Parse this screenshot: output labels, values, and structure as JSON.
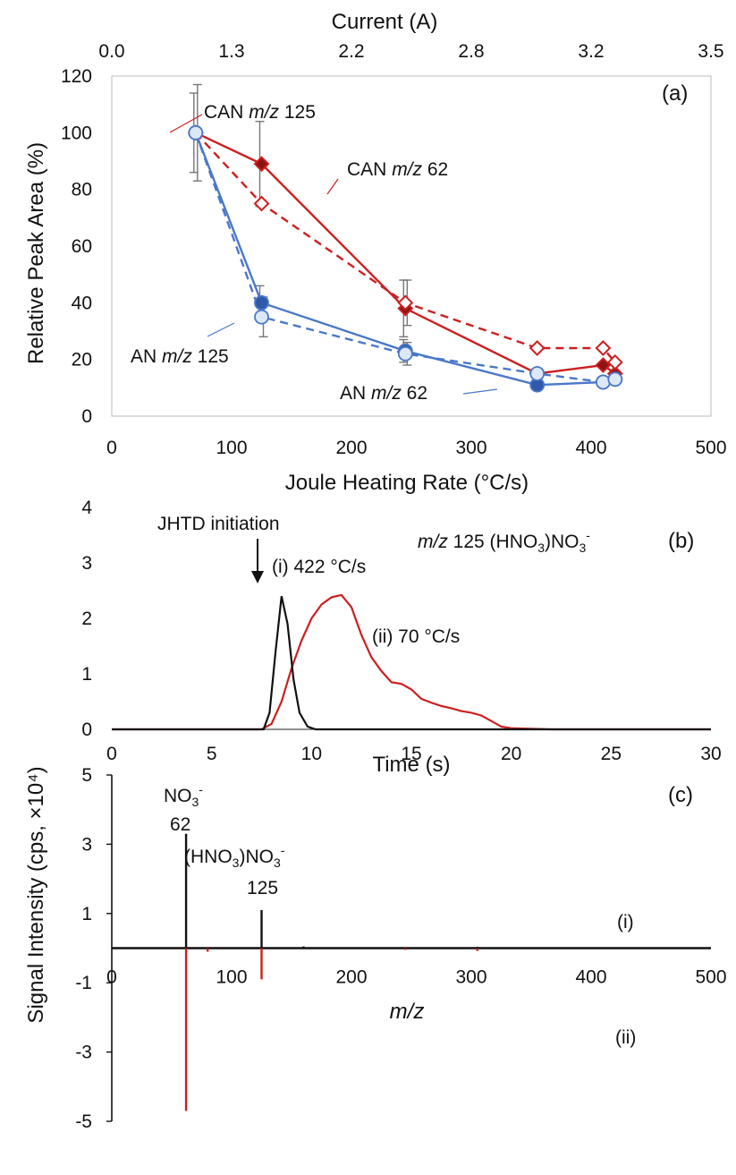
{
  "colors": {
    "can": "#cc1f1f",
    "can_fill_dark": "#8e1414",
    "an": "#4a78c8",
    "an_fill_dark": "#2f5aa8",
    "an_fill_light": "#dde8f6",
    "black": "#111111",
    "error_bar": "#777777"
  },
  "chart_data": [
    {
      "panel": "(a)",
      "type": "line",
      "xlabel": "Joule Heating Rate (°C/s)",
      "ylabel": "Relative Peak Area (%)",
      "top_axis_label": "Current (A)",
      "top_ticks": [
        "0.0",
        "1.3",
        "2.2",
        "2.8",
        "3.2",
        "3.5"
      ],
      "xlim": [
        0,
        500
      ],
      "ylim": [
        0,
        120
      ],
      "xticks": [
        "0",
        "100",
        "200",
        "300",
        "400",
        "500"
      ],
      "yticks": [
        "0",
        "20",
        "40",
        "60",
        "80",
        "100",
        "120"
      ],
      "series": [
        {
          "name": "CAN m/z 125",
          "style": "solid",
          "marker": "diamond-filled",
          "x": [
            70,
            125,
            245,
            355,
            410,
            420
          ],
          "y": [
            100,
            89,
            38,
            15,
            18,
            15
          ],
          "err": [
            0,
            15,
            10,
            0,
            0,
            0
          ]
        },
        {
          "name": "CAN m/z 62",
          "style": "dashed",
          "marker": "diamond-open",
          "x": [
            70,
            125,
            245,
            355,
            410,
            420
          ],
          "y": [
            100,
            75,
            40,
            24,
            24,
            19
          ],
          "err": [
            17,
            0,
            8,
            0,
            0,
            0
          ]
        },
        {
          "name": "AN m/z 125",
          "style": "solid",
          "marker": "circle-filled",
          "x": [
            70,
            125,
            245,
            355,
            410,
            420
          ],
          "y": [
            100,
            40,
            23,
            11,
            12,
            13
          ],
          "err": [
            14,
            6,
            4,
            0,
            0,
            0
          ]
        },
        {
          "name": "AN m/z 62",
          "style": "dashed",
          "marker": "circle-open",
          "x": [
            70,
            125,
            245,
            355,
            410,
            420
          ],
          "y": [
            100,
            35,
            22,
            15,
            12,
            13
          ],
          "err": [
            0,
            7,
            4,
            0,
            0,
            0
          ]
        }
      ],
      "labels": [
        {
          "prefix": "CAN ",
          "mz": "m/z",
          "suffix": " 125"
        },
        {
          "prefix": "CAN ",
          "mz": "m/z",
          "suffix": " 62"
        },
        {
          "prefix": "AN ",
          "mz": "m/z",
          "suffix": " 125"
        },
        {
          "prefix": "AN ",
          "mz": "m/z",
          "suffix": " 62"
        }
      ]
    },
    {
      "panel": "(b)",
      "type": "line",
      "xlabel": "Time (s)",
      "xlim": [
        0,
        30
      ],
      "ylim": [
        0,
        4
      ],
      "xticks": [
        "0",
        "5",
        "10",
        "15",
        "20",
        "25",
        "30"
      ],
      "yticks": [
        "0",
        "1",
        "2",
        "3",
        "4"
      ],
      "title_mz": "m/z",
      "title_rest": " 125 (HNO",
      "title_tail": ")NO",
      "annotation": "JHTD initiation",
      "series": [
        {
          "name": "(i) 422 °C/s",
          "x": [
            0,
            2,
            4,
            6,
            7.6,
            7.9,
            8.2,
            8.5,
            8.8,
            9.1,
            9.4,
            9.8,
            10.2,
            12,
            15,
            20,
            25,
            30
          ],
          "y": [
            0,
            0,
            0,
            0,
            0,
            0.3,
            1.4,
            2.4,
            1.9,
            0.9,
            0.3,
            0.05,
            0,
            0,
            0,
            0,
            0,
            0
          ]
        },
        {
          "name": "(ii) 70 °C/s",
          "x": [
            0,
            5,
            7.5,
            8,
            8.5,
            9,
            9.5,
            10,
            10.5,
            11,
            11.5,
            12,
            12.5,
            13,
            13.5,
            14,
            14.5,
            15,
            15.5,
            16,
            16.5,
            17,
            17.5,
            18,
            18.5,
            19,
            19.5,
            20,
            22,
            25,
            30
          ],
          "y": [
            0,
            0,
            0,
            0.1,
            0.5,
            1.1,
            1.6,
            2.0,
            2.25,
            2.38,
            2.42,
            2.2,
            1.7,
            1.3,
            1.05,
            0.85,
            0.82,
            0.72,
            0.55,
            0.48,
            0.42,
            0.38,
            0.33,
            0.3,
            0.25,
            0.15,
            0.05,
            0.02,
            0,
            0,
            0
          ]
        }
      ]
    },
    {
      "panel": "(c)",
      "type": "bar",
      "xlabel": "m/z",
      "ylabel": "Signal Intensity (cps, ×10⁴)",
      "xlim": [
        0,
        500
      ],
      "ylim": [
        -5,
        5
      ],
      "xticks": [
        "0",
        "100",
        "200",
        "300",
        "400",
        "500"
      ],
      "yticks": [
        "5",
        "3",
        "1",
        "-1",
        "-3",
        "-5"
      ],
      "series": [
        {
          "name": "(i)",
          "x": [
            62,
            125,
            160,
            305
          ],
          "values": [
            3.3,
            1.1,
            0.05,
            0.04
          ]
        },
        {
          "name": "(ii)",
          "x": [
            62,
            80,
            125,
            245,
            305
          ],
          "values": [
            -4.7,
            -0.1,
            -0.9,
            -0.05,
            -0.08
          ]
        }
      ],
      "peak_labels": [
        {
          "formula": "NO",
          "sub": "3",
          "sup": "-",
          "mass": "62"
        },
        {
          "formula_pre": "(HNO",
          "sub": "3",
          "formula_post": ")NO",
          "sub2": "3",
          "sup": "-",
          "mass": "125"
        }
      ]
    }
  ]
}
